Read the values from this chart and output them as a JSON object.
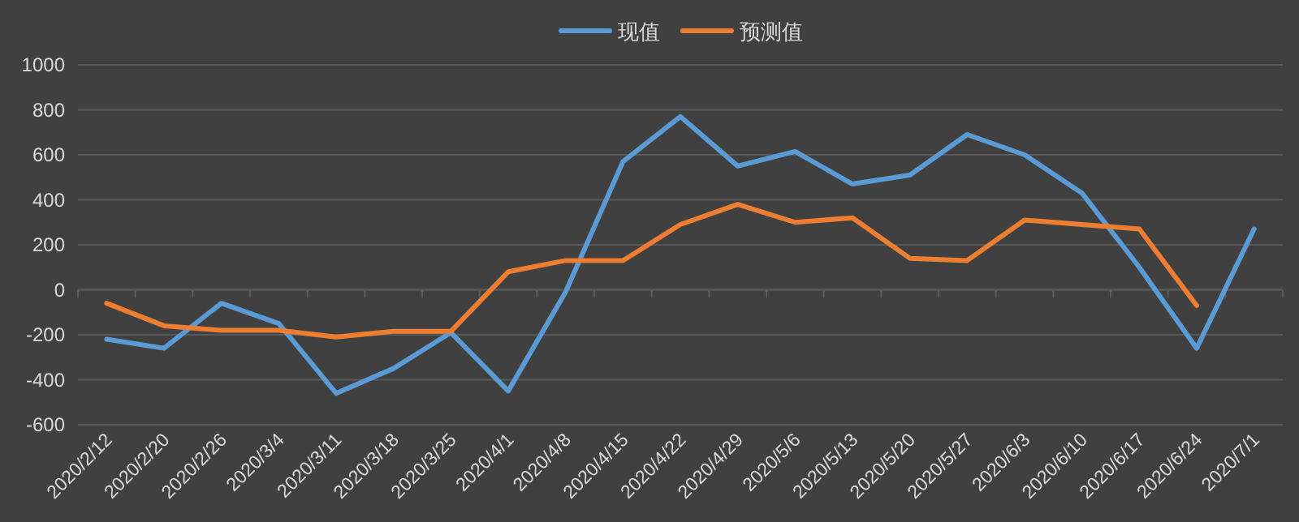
{
  "chart_data": {
    "type": "line",
    "categories": [
      "2020/2/12",
      "2020/2/20",
      "2020/2/26",
      "2020/3/4",
      "2020/3/11",
      "2020/3/18",
      "2020/3/25",
      "2020/4/1",
      "2020/4/8",
      "2020/4/15",
      "2020/4/22",
      "2020/4/29",
      "2020/5/6",
      "2020/5/13",
      "2020/5/20",
      "2020/5/27",
      "2020/6/3",
      "2020/6/10",
      "2020/6/17",
      "2020/6/24",
      "2020/7/1"
    ],
    "series": [
      {
        "name": "现值",
        "color": "#5b9bd5",
        "values": [
          -220,
          -260,
          -60,
          -150,
          -460,
          -350,
          -190,
          -450,
          -10,
          570,
          770,
          550,
          615,
          470,
          510,
          690,
          600,
          430,
          100,
          -260,
          270
        ]
      },
      {
        "name": "预测值",
        "color": "#ed7d31",
        "values": [
          -60,
          -160,
          -180,
          -180,
          -210,
          -185,
          -185,
          80,
          130,
          130,
          290,
          380,
          300,
          320,
          140,
          130,
          310,
          290,
          270,
          -70,
          null
        ]
      }
    ],
    "ylim": [
      -600,
      1000
    ],
    "yticks": [
      -600,
      -400,
      -200,
      0,
      200,
      400,
      600,
      800,
      1000
    ],
    "grid": "y",
    "legend": "top",
    "marker": "none",
    "line_style": "solid"
  }
}
